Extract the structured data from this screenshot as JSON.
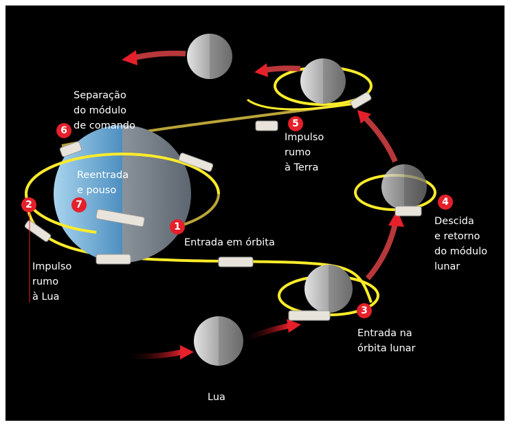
{
  "steps": [
    {
      "number": "1",
      "lines": [
        "Entrada em órbita"
      ]
    },
    {
      "number": "2",
      "lines": [
        "Impulso",
        "rumo",
        "à Lua"
      ]
    },
    {
      "number": "3",
      "lines": [
        "Entrada na",
        "órbita lunar"
      ]
    },
    {
      "number": "4",
      "lines": [
        "Descida",
        "e retorno",
        "do módulo",
        "lunar"
      ]
    },
    {
      "number": "5",
      "lines": [
        "Impulso",
        "rumo",
        "à Terra"
      ]
    },
    {
      "number": "6",
      "lines": [
        "Separação",
        "do módulo",
        "de comando"
      ]
    },
    {
      "number": "7",
      "lines": [
        "Reentrada",
        "e pouso"
      ]
    }
  ],
  "moon_label": "Lua"
}
